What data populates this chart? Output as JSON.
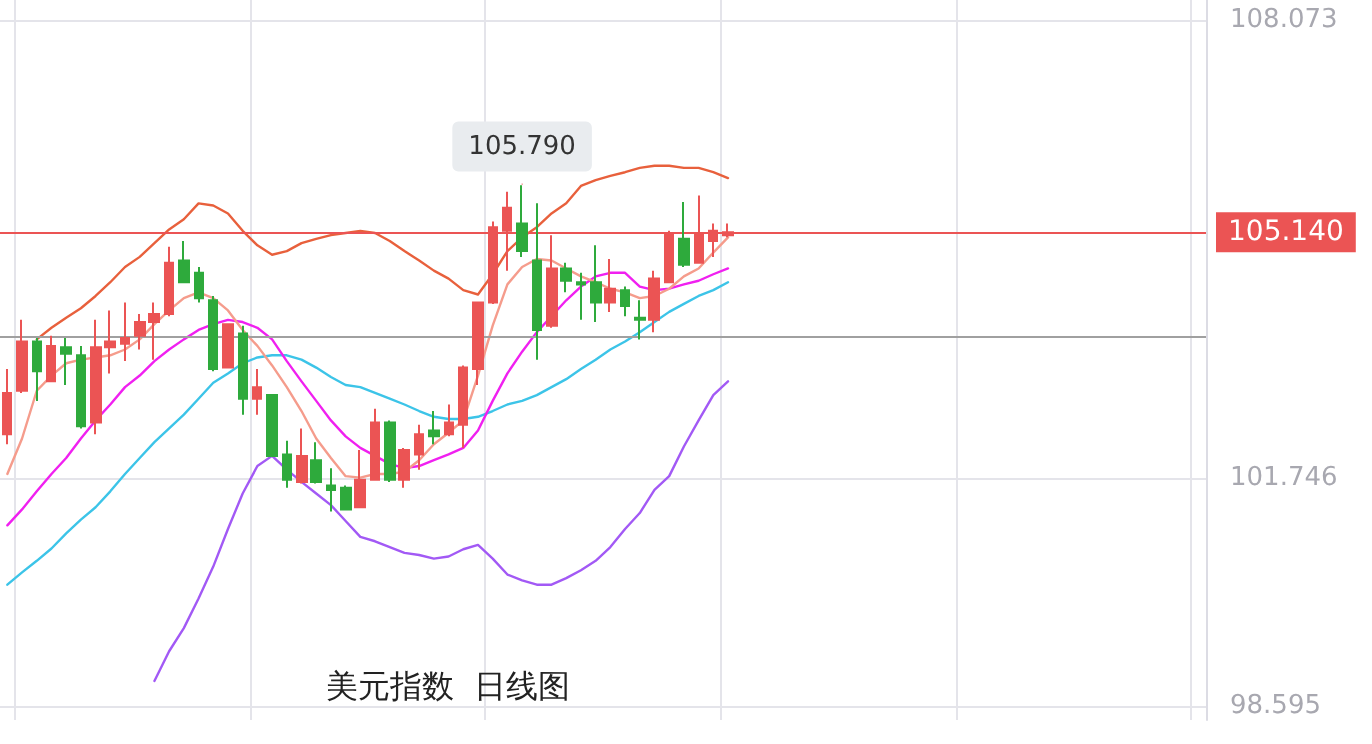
{
  "chart_data": {
    "type": "candlestick",
    "title": "美元指数  日线图",
    "categories": [
      null,
      null,
      null,
      null,
      null,
      null,
      null,
      null,
      null,
      null,
      null,
      null,
      null,
      null,
      null,
      null,
      null,
      null,
      null,
      null,
      null,
      null,
      null,
      null,
      null,
      null,
      null,
      null,
      null,
      null,
      null,
      null,
      null,
      null,
      null,
      null,
      null,
      null,
      null,
      null,
      null,
      null,
      null,
      null,
      null,
      null,
      null,
      null,
      null,
      null
    ],
    "ohlc": [
      [
        102.35,
        103.25,
        102.21,
        102.92
      ],
      [
        102.95,
        103.93,
        102.92,
        103.63
      ],
      [
        103.63,
        103.68,
        102.81,
        103.22
      ],
      [
        103.08,
        103.71,
        103.08,
        103.57
      ],
      [
        103.55,
        103.68,
        103.03,
        103.46
      ],
      [
        103.44,
        103.57,
        102.43,
        102.46
      ],
      [
        102.51,
        103.93,
        102.35,
        103.55
      ],
      [
        103.55,
        104.06,
        103.19,
        103.63
      ],
      [
        103.6,
        104.17,
        103.36,
        103.68
      ],
      [
        103.71,
        104.01,
        103.52,
        103.9
      ],
      [
        103.9,
        104.17,
        103.38,
        104.01
      ],
      [
        104.01,
        104.94,
        103.98,
        104.72
      ],
      [
        104.75,
        105.02,
        104.45,
        104.45
      ],
      [
        104.58,
        104.66,
        104.17,
        104.23
      ],
      [
        104.2,
        104.26,
        103.22,
        103.25
      ],
      [
        103.27,
        103.87,
        103.27,
        103.87
      ],
      [
        103.74,
        103.85,
        102.62,
        102.84
      ],
      [
        102.84,
        103.25,
        102.62,
        103.0
      ],
      [
        102.89,
        102.89,
        102.05,
        102.05
      ],
      [
        102.07,
        102.26,
        101.61,
        101.72
      ],
      [
        101.69,
        102.43,
        101.67,
        102.05
      ],
      [
        101.99,
        102.24,
        101.67,
        101.69
      ],
      [
        101.64,
        101.88,
        101.28,
        101.58
      ],
      [
        101.61,
        101.64,
        101.31,
        101.31
      ],
      [
        101.34,
        102.13,
        101.34,
        101.72
      ],
      [
        101.72,
        102.7,
        101.72,
        102.51
      ],
      [
        102.51,
        102.54,
        101.69,
        101.72
      ],
      [
        101.72,
        102.16,
        101.61,
        102.13
      ],
      [
        102.07,
        102.48,
        101.86,
        102.35
      ],
      [
        102.4,
        102.67,
        102.21,
        102.32
      ],
      [
        102.35,
        102.76,
        102.32,
        102.51
      ],
      [
        102.48,
        103.3,
        102.16,
        103.27
      ],
      [
        103.25,
        104.17,
        103.03,
        104.17
      ],
      [
        104.17,
        105.29,
        104.15,
        105.21
      ],
      [
        105.16,
        105.7,
        104.61,
        105.48
      ],
      [
        105.26,
        105.79,
        104.8,
        104.88
      ],
      [
        104.75,
        105.54,
        103.38,
        103.79
      ],
      [
        103.85,
        105.1,
        103.82,
        104.64
      ],
      [
        104.64,
        104.72,
        104.31,
        104.47
      ],
      [
        104.45,
        104.58,
        103.93,
        104.42
      ],
      [
        104.45,
        104.96,
        103.9,
        104.17
      ],
      [
        104.17,
        104.77,
        104.04,
        104.36
      ],
      [
        104.34,
        104.39,
        103.98,
        104.12
      ],
      [
        103.96,
        104.2,
        103.66,
        103.93
      ],
      [
        103.93,
        104.61,
        103.76,
        104.5
      ],
      [
        104.45,
        105.16,
        104.45,
        105.13
      ],
      [
        105.05,
        105.56,
        104.66,
        104.69
      ],
      [
        104.72,
        105.65,
        104.72,
        105.13
      ],
      [
        105.02,
        105.26,
        104.8,
        105.16
      ],
      [
        105.1,
        105.26,
        105.07,
        105.14
      ]
    ],
    "series": [
      {
        "type": "line",
        "color": "#e8603c",
        "values": [
          null,
          null,
          103.66,
          103.82,
          103.96,
          104.09,
          104.26,
          104.45,
          104.66,
          104.8,
          104.99,
          105.18,
          105.32,
          105.54,
          105.51,
          105.4,
          105.16,
          104.96,
          104.83,
          104.88,
          104.99,
          105.05,
          105.1,
          105.13,
          105.16,
          105.13,
          105.02,
          104.88,
          104.75,
          104.61,
          104.5,
          104.34,
          104.28,
          104.56,
          104.88,
          105.07,
          105.21,
          105.4,
          105.54,
          105.78,
          105.86,
          105.92,
          105.97,
          106.03,
          106.06,
          106.06,
          106.03,
          106.03,
          105.97,
          105.89
        ]
      },
      {
        "type": "line",
        "color": "#a259f5",
        "values": [
          null,
          null,
          null,
          null,
          null,
          null,
          null,
          null,
          null,
          null,
          98.94,
          99.35,
          99.67,
          100.08,
          100.52,
          101.04,
          101.53,
          101.91,
          102.05,
          101.86,
          101.69,
          101.53,
          101.37,
          101.15,
          100.93,
          100.87,
          100.79,
          100.71,
          100.68,
          100.63,
          100.66,
          100.76,
          100.82,
          100.63,
          100.41,
          100.33,
          100.27,
          100.27,
          100.36,
          100.47,
          100.6,
          100.79,
          101.04,
          101.26,
          101.58,
          101.77,
          102.18,
          102.54,
          102.89,
          103.08
        ]
      },
      {
        "type": "line",
        "color": "#3cc4e8",
        "values": [
          100.27,
          100.44,
          100.6,
          100.77,
          100.98,
          101.17,
          101.34,
          101.56,
          101.8,
          102.02,
          102.24,
          102.43,
          102.62,
          102.84,
          103.06,
          103.19,
          103.33,
          103.41,
          103.44,
          103.44,
          103.38,
          103.27,
          103.14,
          103.03,
          103.0,
          102.92,
          102.84,
          102.76,
          102.67,
          102.59,
          102.56,
          102.56,
          102.59,
          102.67,
          102.76,
          102.81,
          102.89,
          103.0,
          103.11,
          103.25,
          103.38,
          103.52,
          103.63,
          103.76,
          103.9,
          104.04,
          104.15,
          104.26,
          104.34,
          104.45
        ]
      },
      {
        "type": "line",
        "color": "#f020f0",
        "values": [
          101.09,
          101.31,
          101.56,
          101.8,
          102.02,
          102.29,
          102.54,
          102.76,
          103.0,
          103.16,
          103.36,
          103.52,
          103.66,
          103.79,
          103.87,
          103.93,
          103.9,
          103.82,
          103.66,
          103.36,
          103.08,
          102.81,
          102.54,
          102.32,
          102.16,
          102.05,
          101.94,
          101.88,
          101.91,
          101.99,
          102.07,
          102.16,
          102.4,
          102.81,
          103.19,
          103.49,
          103.76,
          103.98,
          104.2,
          104.39,
          104.53,
          104.58,
          104.58,
          104.39,
          104.34,
          104.36,
          104.42,
          104.47,
          104.56,
          104.64
        ]
      },
      {
        "type": "line",
        "color": "#f59c8c",
        "values": [
          101.8,
          102.29,
          102.95,
          103.16,
          103.33,
          103.38,
          103.41,
          103.44,
          103.52,
          103.66,
          103.87,
          104.06,
          104.23,
          104.31,
          104.23,
          104.06,
          103.79,
          103.57,
          103.3,
          103.0,
          102.67,
          102.29,
          102.02,
          101.77,
          101.75,
          101.8,
          101.8,
          101.83,
          101.99,
          102.21,
          102.37,
          102.54,
          103.16,
          103.85,
          104.42,
          104.66,
          104.77,
          104.75,
          104.64,
          104.53,
          104.45,
          104.36,
          104.31,
          104.23,
          104.26,
          104.36,
          104.53,
          104.64,
          104.86,
          105.07
        ]
      }
    ],
    "ylim": [
      98.4,
      108.35
    ],
    "yticks": [
      108.073,
      101.746,
      98.595
    ],
    "grid": true,
    "tick_labels": "y",
    "ref_lines": [
      {
        "axis": "y",
        "value": 105.14,
        "label": "105.140",
        "color": "#eb5454"
      },
      {
        "axis": "y",
        "value": 103.71,
        "color": "#a0a0a0"
      }
    ],
    "annotations": [
      {
        "text": "105.790",
        "y": 105.79
      }
    ]
  }
}
